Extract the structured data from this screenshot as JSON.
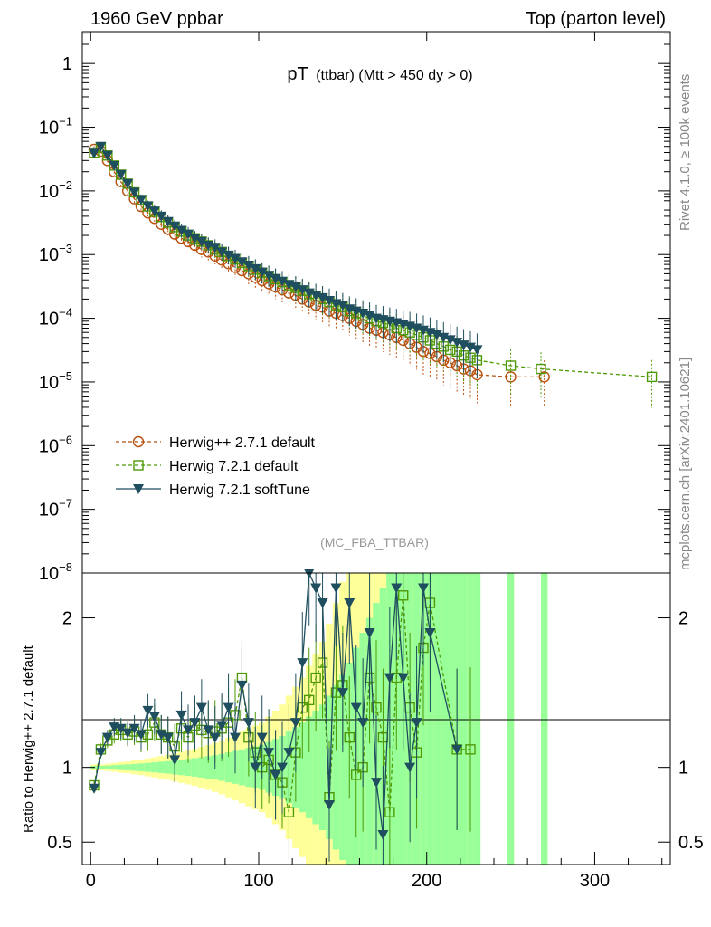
{
  "header": {
    "left": "1960 GeV ppbar",
    "right": "Top (parton level)"
  },
  "side_labels": {
    "rivet": "Rivet 4.1.0, ≥ 100k events",
    "mcplots": "mcplots.cern.ch [arXiv:2401.10621]"
  },
  "colors": {
    "herwigpp": "#b8500e",
    "herwig721": "#4e9a06",
    "softtune": "#1f4e5f",
    "band_yellow": "#ffff99",
    "band_green": "#99ff99"
  },
  "chart_data": [
    {
      "type": "line",
      "panel": "main",
      "title": "pT",
      "title_sub": "(ttbar) (Mtt > 450 dy > 0)",
      "watermark": "(MC_FBA_TTBAR)",
      "xlim": [
        -5,
        345
      ],
      "ylim_log10": [
        -8,
        0.5
      ],
      "yscale": "log",
      "ytick_labels": [
        "1",
        "10",
        "10",
        "10",
        "10",
        "10",
        "10",
        "10",
        "10"
      ],
      "ytick_exponents": [
        "",
        "−1",
        "−2",
        "−3",
        "−4",
        "−5",
        "−6",
        "−7",
        "−8"
      ],
      "legend_position": "lower-left",
      "series": [
        {
          "name": "Herwig++ 2.7.1 default",
          "color_key": "herwigpp",
          "marker": "circle-open",
          "dashed": true,
          "x": [
            2,
            6,
            10,
            14,
            18,
            22,
            26,
            30,
            34,
            38,
            42,
            46,
            50,
            54,
            58,
            62,
            66,
            70,
            74,
            78,
            82,
            86,
            90,
            94,
            98,
            102,
            106,
            110,
            114,
            118,
            122,
            126,
            130,
            134,
            138,
            142,
            146,
            150,
            154,
            158,
            162,
            166,
            170,
            174,
            178,
            182,
            186,
            190,
            194,
            198,
            202,
            206,
            210,
            214,
            218,
            222,
            226,
            230,
            250,
            270
          ],
          "y": [
            0.045,
            0.042,
            0.03,
            0.02,
            0.014,
            0.01,
            0.0075,
            0.0057,
            0.0045,
            0.0037,
            0.003,
            0.0025,
            0.0021,
            0.0018,
            0.0016,
            0.0014,
            0.0012,
            0.0011,
            0.00095,
            0.00082,
            0.00072,
            0.00063,
            0.00056,
            0.0005,
            0.00044,
            0.00039,
            0.00035,
            0.00031,
            0.00028,
            0.00025,
            0.00023,
            0.0002,
            0.00018,
            0.00016,
            0.00015,
            0.00013,
            0.00012,
            0.00011,
            0.0001,
            9e-05,
            8e-05,
            7e-05,
            6.5e-05,
            6e-05,
            5.5e-05,
            5e-05,
            4.5e-05,
            4e-05,
            3.5e-05,
            3e-05,
            2.8e-05,
            2.5e-05,
            2.2e-05,
            2e-05,
            1.8e-05,
            1.6e-05,
            1.5e-05,
            1.3e-05,
            1.2e-05,
            1.2e-05
          ]
        },
        {
          "name": "Herwig 7.2.1 default",
          "color_key": "herwig721",
          "marker": "square-open",
          "dashed": true,
          "x": [
            2,
            6,
            10,
            14,
            18,
            22,
            26,
            30,
            34,
            38,
            42,
            46,
            50,
            54,
            58,
            62,
            66,
            70,
            74,
            78,
            82,
            86,
            90,
            94,
            98,
            102,
            106,
            110,
            114,
            118,
            122,
            126,
            130,
            134,
            138,
            142,
            146,
            150,
            154,
            158,
            162,
            166,
            170,
            174,
            178,
            182,
            186,
            190,
            194,
            198,
            202,
            206,
            210,
            214,
            218,
            222,
            226,
            230,
            250,
            268,
            334
          ],
          "y": [
            0.04,
            0.048,
            0.036,
            0.025,
            0.018,
            0.013,
            0.0095,
            0.0072,
            0.0057,
            0.0047,
            0.0039,
            0.0032,
            0.0027,
            0.0023,
            0.002,
            0.0018,
            0.0016,
            0.0014,
            0.0012,
            0.0011,
            0.00095,
            0.00084,
            0.00074,
            0.00066,
            0.00058,
            0.00052,
            0.00046,
            0.00041,
            0.00037,
            0.00033,
            0.0003,
            0.00027,
            0.00024,
            0.00022,
            0.0002,
            0.00018,
            0.00016,
            0.00015,
            0.00013,
            0.00012,
            0.00011,
            0.0001,
            9e-05,
            8.5e-05,
            7.8e-05,
            7e-05,
            6.5e-05,
            6e-05,
            5.5e-05,
            5e-05,
            4.5e-05,
            4e-05,
            3.6e-05,
            3.2e-05,
            3e-05,
            2.6e-05,
            2.4e-05,
            2.2e-05,
            1.8e-05,
            1.6e-05,
            1.2e-05
          ]
        },
        {
          "name": "Herwig 7.2.1 softTune",
          "color_key": "softtune",
          "marker": "triangle-down",
          "dashed": false,
          "x": [
            2,
            6,
            10,
            14,
            18,
            22,
            26,
            30,
            34,
            38,
            42,
            46,
            50,
            54,
            58,
            62,
            66,
            70,
            74,
            78,
            82,
            86,
            90,
            94,
            98,
            102,
            106,
            110,
            114,
            118,
            122,
            126,
            130,
            134,
            138,
            142,
            146,
            150,
            154,
            158,
            162,
            166,
            170,
            174,
            178,
            182,
            186,
            190,
            194,
            198,
            202,
            206,
            210,
            214,
            218,
            222,
            226,
            230
          ],
          "y": [
            0.039,
            0.05,
            0.036,
            0.025,
            0.018,
            0.013,
            0.0095,
            0.0073,
            0.0058,
            0.0048,
            0.004,
            0.0033,
            0.0028,
            0.0024,
            0.0021,
            0.0018,
            0.0016,
            0.0014,
            0.0013,
            0.0011,
            0.00098,
            0.00087,
            0.00077,
            0.00068,
            0.0006,
            0.00053,
            0.00047,
            0.00042,
            0.00038,
            0.00034,
            0.00031,
            0.00028,
            0.00025,
            0.00023,
            0.00021,
            0.00019,
            0.00017,
            0.00016,
            0.00014,
            0.00013,
            0.00012,
            0.00011,
            0.0001,
            9.5e-05,
            9e-05,
            8.5e-05,
            8e-05,
            7.5e-05,
            7e-05,
            6.5e-05,
            6e-05,
            5.5e-05,
            5e-05,
            4.6e-05,
            4.2e-05,
            3.8e-05,
            3.5e-05,
            3.2e-05
          ]
        }
      ]
    },
    {
      "type": "line",
      "panel": "ratio",
      "ylabel": "Ratio to Herwig++ 2.7.1 default",
      "xlim": [
        -5,
        345
      ],
      "ylim": [
        0.35,
        2.3
      ],
      "x_ticks": [
        0,
        100,
        200,
        300
      ],
      "x_tick_labels": [
        "0",
        "100",
        "200",
        "300"
      ],
      "y_ticks": [
        0.5,
        1,
        2
      ],
      "y_tick_labels": [
        "0.5",
        "1",
        "2"
      ],
      "band": {
        "x": [
          2,
          6,
          10,
          14,
          18,
          22,
          26,
          30,
          34,
          38,
          42,
          46,
          50,
          54,
          58,
          62,
          66,
          70,
          74,
          78,
          82,
          86,
          90,
          94,
          98,
          102,
          106,
          110,
          114,
          118,
          122,
          126,
          130,
          134,
          138,
          142,
          146,
          150,
          154,
          158,
          162,
          166,
          170,
          174,
          178,
          182,
          186,
          190,
          194,
          198,
          202,
          206,
          210,
          214,
          218,
          222,
          226,
          230,
          250,
          270
        ],
        "green": [
          0.01,
          0.01,
          0.012,
          0.015,
          0.018,
          0.02,
          0.023,
          0.026,
          0.03,
          0.034,
          0.038,
          0.042,
          0.047,
          0.052,
          0.057,
          0.062,
          0.068,
          0.075,
          0.082,
          0.09,
          0.1,
          0.11,
          0.12,
          0.13,
          0.14,
          0.15,
          0.17,
          0.19,
          0.21,
          0.24,
          0.27,
          0.3,
          0.34,
          0.38,
          0.42,
          0.48,
          0.55,
          0.62,
          0.7,
          0.8,
          0.9,
          1.0,
          1.1,
          1.2,
          1.3,
          1.4,
          1.5,
          1.6,
          1.7,
          1.8,
          1.9,
          2.0,
          2.1,
          2.2,
          2.3,
          2.3,
          2.3,
          2.3,
          2.3,
          2.3
        ],
        "yellow": [
          0.02,
          0.02,
          0.024,
          0.03,
          0.036,
          0.04,
          0.046,
          0.052,
          0.06,
          0.068,
          0.076,
          0.084,
          0.094,
          0.104,
          0.114,
          0.124,
          0.136,
          0.15,
          0.164,
          0.18,
          0.2,
          0.22,
          0.24,
          0.26,
          0.28,
          0.3,
          0.34,
          0.38,
          0.42,
          0.48,
          0.54,
          0.6,
          0.68,
          0.76,
          0.84,
          0.96,
          1.1,
          1.24,
          1.4,
          1.6,
          1.8,
          2.0,
          2.2,
          2.4,
          2.6,
          2.8,
          3.0,
          3.2,
          3.4,
          3.6,
          3.8,
          4.0,
          4.2,
          4.4,
          4.6,
          4.6,
          4.6,
          4.6,
          4.6,
          4.6
        ]
      },
      "series": [
        {
          "name": "Herwig 7.2.1 default",
          "color_key": "herwig721",
          "marker": "square-open",
          "dashed": true,
          "x": [
            2,
            6,
            10,
            14,
            18,
            22,
            26,
            30,
            34,
            38,
            42,
            46,
            50,
            54,
            58,
            62,
            66,
            70,
            74,
            78,
            82,
            86,
            90,
            94,
            98,
            102,
            106,
            110,
            114,
            118,
            122,
            126,
            130,
            134,
            138,
            142,
            146,
            150,
            154,
            158,
            162,
            166,
            170,
            174,
            178,
            182,
            186,
            190,
            194,
            198,
            202,
            218,
            226
          ],
          "y": [
            0.88,
            1.12,
            1.18,
            1.22,
            1.25,
            1.22,
            1.24,
            1.2,
            1.22,
            1.3,
            1.22,
            1.2,
            1.14,
            1.26,
            1.2,
            1.28,
            1.25,
            1.23,
            1.24,
            1.26,
            1.3,
            1.35,
            1.6,
            1.2,
            1.1,
            1.0,
            1.05,
            0.95,
            0.9,
            0.7,
            1.1,
            1.4,
            1.45,
            1.6,
            1.7,
            0.8,
            1.5,
            1.55,
            1.2,
            0.95,
            1.0,
            1.6,
            1.4,
            1.2,
            0.7,
            1.6,
            2.15,
            1.4,
            1.1,
            1.8,
            2.1,
            1.12,
            1.12
          ]
        },
        {
          "name": "Herwig 7.2.1 softTune",
          "color_key": "softtune",
          "marker": "triangle-down",
          "dashed": false,
          "x": [
            2,
            6,
            10,
            14,
            18,
            22,
            26,
            30,
            34,
            38,
            42,
            46,
            50,
            54,
            58,
            62,
            66,
            70,
            74,
            78,
            82,
            86,
            90,
            94,
            98,
            102,
            106,
            110,
            114,
            118,
            122,
            126,
            130,
            134,
            138,
            142,
            146,
            150,
            154,
            158,
            162,
            166,
            170,
            174,
            178,
            182,
            186,
            190,
            194,
            198,
            202,
            218
          ],
          "y": [
            0.86,
            1.1,
            1.2,
            1.27,
            1.26,
            1.23,
            1.26,
            1.22,
            1.38,
            1.34,
            1.22,
            1.2,
            1.05,
            1.35,
            1.25,
            1.3,
            1.4,
            1.25,
            1.2,
            1.28,
            1.4,
            1.2,
            1.55,
            1.3,
            1.0,
            1.2,
            1.1,
            0.95,
            1.0,
            1.1,
            1.3,
            1.7,
            2.3,
            2.2,
            2.1,
            0.75,
            2.2,
            1.5,
            2.1,
            1.4,
            1.3,
            1.9,
            0.9,
            0.55,
            1.6,
            2.2,
            1.6,
            1.0,
            1.3,
            2.2,
            1.9,
            1.12
          ]
        }
      ]
    }
  ]
}
